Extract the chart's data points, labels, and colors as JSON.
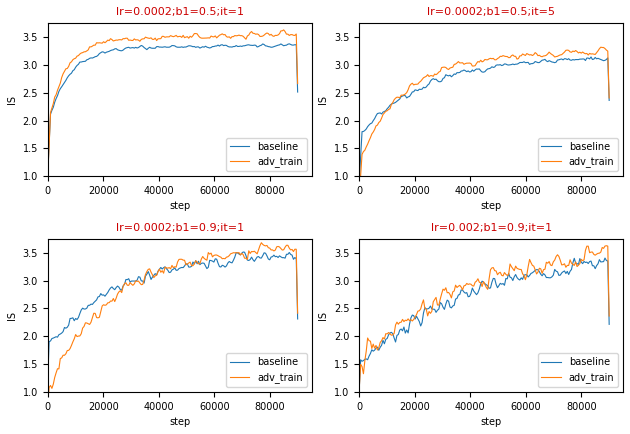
{
  "titles": [
    "lr=0.0002;b1=0.5;it=1",
    "lr=0.0002;b1=0.5;it=5",
    "lr=0.0002;b1=0.9;it=1",
    "lr=0.002;b1=0.9;it=1"
  ],
  "title_color": "#cc0000",
  "xlabel": "step",
  "ylabel": "IS",
  "xlim": [
    0,
    95000
  ],
  "ylim": [
    1.0,
    3.75
  ],
  "legend_labels": [
    "baseline",
    "adv_train"
  ],
  "baseline_color": "#1f77b4",
  "adv_train_color": "#ff7f0e",
  "figsize": [
    6.3,
    4.34
  ],
  "dpi": 100,
  "n_points": 180,
  "background_color": "#ffffff"
}
